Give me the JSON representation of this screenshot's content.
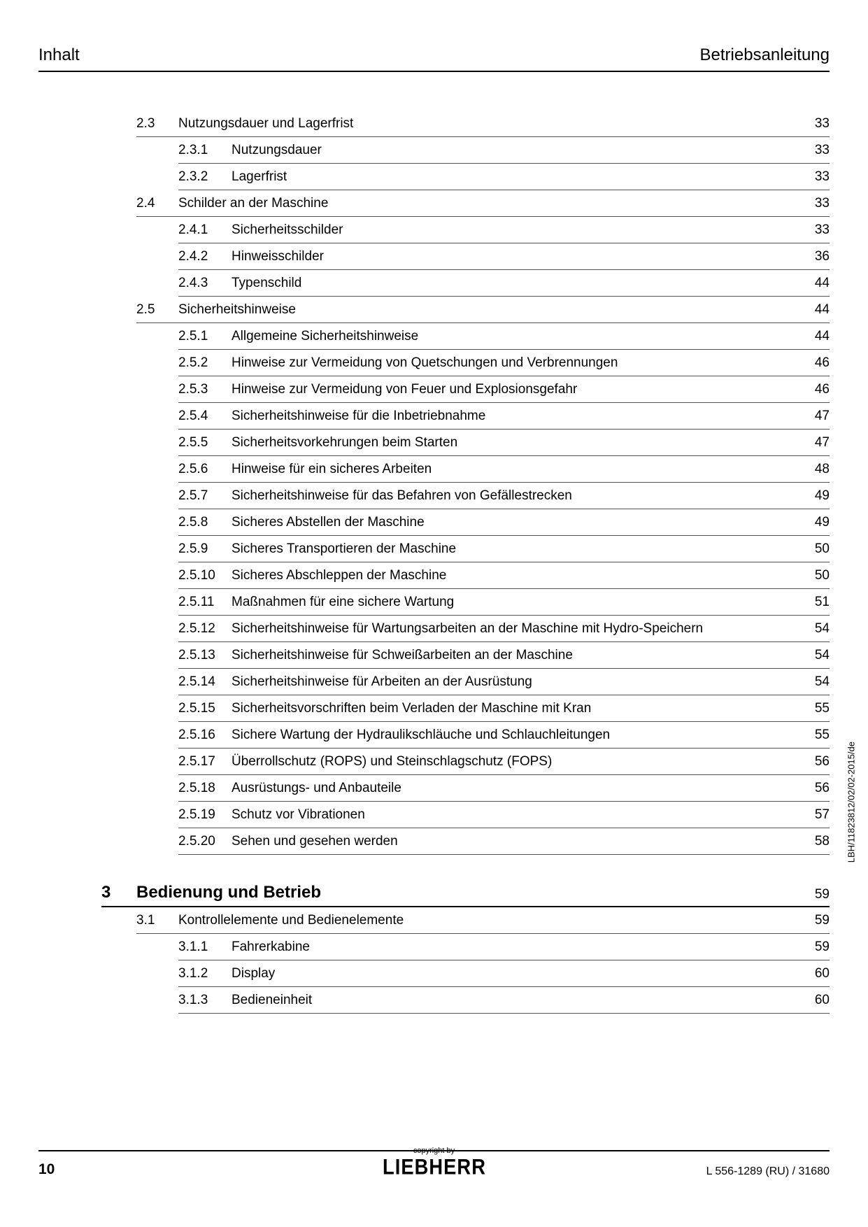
{
  "header": {
    "left": "Inhalt",
    "right": "Betriebsanleitung"
  },
  "toc": [
    {
      "type": "l2",
      "num": "2.3",
      "title": "Nutzungsdauer und Lagerfrist",
      "page": "33"
    },
    {
      "type": "l3",
      "num": "2.3.1",
      "title": "Nutzungsdauer",
      "page": "33"
    },
    {
      "type": "l3",
      "num": "2.3.2",
      "title": "Lagerfrist",
      "page": "33"
    },
    {
      "type": "l2",
      "num": "2.4",
      "title": "Schilder an der Maschine",
      "page": "33"
    },
    {
      "type": "l3",
      "num": "2.4.1",
      "title": "Sicherheitsschilder",
      "page": "33"
    },
    {
      "type": "l3",
      "num": "2.4.2",
      "title": "Hinweisschilder",
      "page": "36"
    },
    {
      "type": "l3",
      "num": "2.4.3",
      "title": "Typenschild",
      "page": "44"
    },
    {
      "type": "l2",
      "num": "2.5",
      "title": "Sicherheitshinweise",
      "page": "44"
    },
    {
      "type": "l3",
      "num": "2.5.1",
      "title": "Allgemeine Sicherheitshinweise",
      "page": "44"
    },
    {
      "type": "l3",
      "num": "2.5.2",
      "title": "Hinweise zur Vermeidung von Quetschungen und Verbrennungen",
      "page": "46"
    },
    {
      "type": "l3",
      "num": "2.5.3",
      "title": "Hinweise zur Vermeidung von Feuer und Explosionsgefahr",
      "page": "46"
    },
    {
      "type": "l3",
      "num": "2.5.4",
      "title": "Sicherheitshinweise für die Inbetriebnahme",
      "page": "47"
    },
    {
      "type": "l3",
      "num": "2.5.5",
      "title": "Sicherheitsvorkehrungen beim Starten",
      "page": "47"
    },
    {
      "type": "l3",
      "num": "2.5.6",
      "title": "Hinweise für ein sicheres Arbeiten",
      "page": "48"
    },
    {
      "type": "l3",
      "num": "2.5.7",
      "title": "Sicherheitshinweise für das Befahren von Gefällestrecken",
      "page": "49"
    },
    {
      "type": "l3",
      "num": "2.5.8",
      "title": "Sicheres Abstellen der Maschine",
      "page": "49"
    },
    {
      "type": "l3",
      "num": "2.5.9",
      "title": "Sicheres Transportieren der Maschine",
      "page": "50"
    },
    {
      "type": "l3",
      "num": "2.5.10",
      "title": "Sicheres Abschleppen der Maschine",
      "page": "50"
    },
    {
      "type": "l3",
      "num": "2.5.11",
      "title": "Maßnahmen für eine sichere Wartung",
      "page": "51"
    },
    {
      "type": "l3",
      "num": "2.5.12",
      "title": "Sicherheitshinweise für Wartungsarbeiten an der Maschine mit Hydro-Speichern",
      "page": "54"
    },
    {
      "type": "l3",
      "num": "2.5.13",
      "title": "Sicherheitshinweise für Schweißarbeiten an der Maschine",
      "page": "54"
    },
    {
      "type": "l3",
      "num": "2.5.14",
      "title": "Sicherheitshinweise für Arbeiten an der Ausrüstung",
      "page": "54"
    },
    {
      "type": "l3",
      "num": "2.5.15",
      "title": "Sicherheitsvorschriften beim Verladen der Maschine mit Kran",
      "page": "55"
    },
    {
      "type": "l3",
      "num": "2.5.16",
      "title": "Sichere Wartung der Hydraulikschläuche und Schlauchleitungen",
      "page": "55"
    },
    {
      "type": "l3",
      "num": "2.5.17",
      "title": "Überrollschutz (ROPS) und Steinschlagschutz (FOPS)",
      "page": "56"
    },
    {
      "type": "l3",
      "num": "2.5.18",
      "title": "Ausrüstungs- und Anbauteile",
      "page": "56"
    },
    {
      "type": "l3",
      "num": "2.5.19",
      "title": "Schutz vor Vibrationen",
      "page": "57"
    },
    {
      "type": "l3",
      "num": "2.5.20",
      "title": "Sehen und gesehen werden",
      "page": "58"
    },
    {
      "type": "chapter",
      "num": "3",
      "title": "Bedienung und Betrieb",
      "page": "59"
    },
    {
      "type": "l2",
      "num": "3.1",
      "title": "Kontrollelemente und Bedienelemente",
      "page": "59"
    },
    {
      "type": "l3",
      "num": "3.1.1",
      "title": "Fahrerkabine",
      "page": "59"
    },
    {
      "type": "l3",
      "num": "3.1.2",
      "title": "Display",
      "page": "60"
    },
    {
      "type": "l3",
      "num": "3.1.3",
      "title": "Bedieneinheit",
      "page": "60"
    }
  ],
  "footer": {
    "page_number": "10",
    "copyright": "copyright by",
    "logo": "LIEBHERR",
    "doc_ref": "L 556-1289 (RU) / 31680"
  },
  "side_text": "LBH/11823812/02/02-2015/de"
}
